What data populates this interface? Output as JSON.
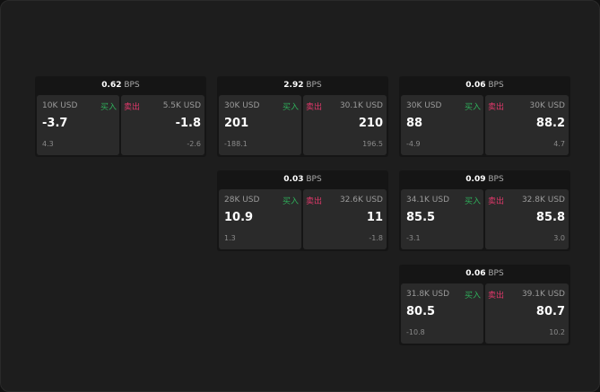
{
  "unit": "BPS",
  "buy_label": "买入",
  "sell_label": "卖出",
  "colors": {
    "buy": "#2fae5a",
    "sell": "#e0386a"
  },
  "panels": [
    {
      "spread": "0.62",
      "buy": {
        "qty": "10K USD",
        "price": "-3.7",
        "change": "4.3"
      },
      "sell": {
        "qty": "5.5K USD",
        "price": "-1.8",
        "change": "-2.6"
      }
    },
    {
      "spread": "2.92",
      "buy": {
        "qty": "30K USD",
        "price": "201",
        "change": "-188.1"
      },
      "sell": {
        "qty": "30.1K USD",
        "price": "210",
        "change": "196.5"
      }
    },
    {
      "spread": "0.06",
      "buy": {
        "qty": "30K USD",
        "price": "88",
        "change": "-4.9"
      },
      "sell": {
        "qty": "30K USD",
        "price": "88.2",
        "change": "4.7"
      }
    },
    {
      "spread": "0.03",
      "buy": {
        "qty": "28K USD",
        "price": "10.9",
        "change": "1.3"
      },
      "sell": {
        "qty": "32.6K USD",
        "price": "11",
        "change": "-1.8"
      }
    },
    {
      "spread": "0.09",
      "buy": {
        "qty": "34.1K USD",
        "price": "85.5",
        "change": "-3.1"
      },
      "sell": {
        "qty": "32.8K USD",
        "price": "85.8",
        "change": "3.0"
      }
    },
    {
      "spread": "0.06",
      "buy": {
        "qty": "31.8K USD",
        "price": "80.5",
        "change": "-10.8"
      },
      "sell": {
        "qty": "39.1K USD",
        "price": "80.7",
        "change": "10.2"
      }
    }
  ]
}
